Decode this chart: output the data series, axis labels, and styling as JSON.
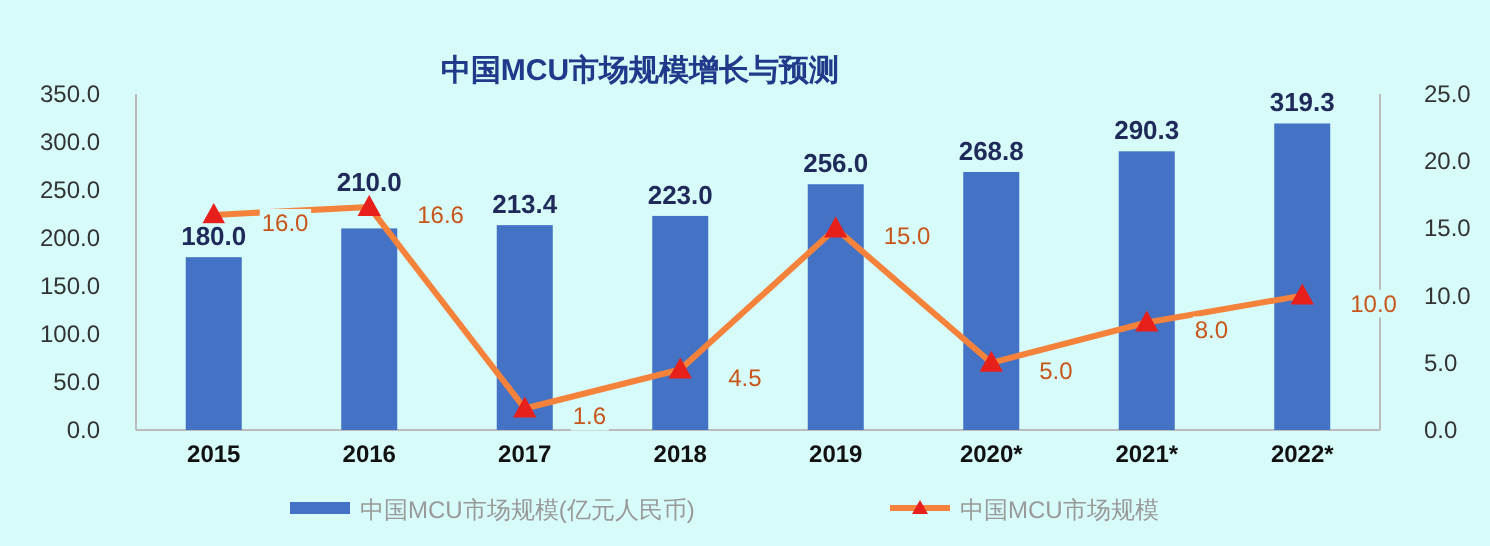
{
  "chart_data": {
    "type": "bar",
    "title": "中国MCU市场规模增长与预测",
    "categories": [
      "2015",
      "2016",
      "2017",
      "2018",
      "2019",
      "2020*",
      "2021*",
      "2022*"
    ],
    "series": [
      {
        "name": "中国MCU市场规模(亿元人民币)",
        "color": "#4472c4",
        "values": [
          180.0,
          210.0,
          213.4,
          223.0,
          256.0,
          268.8,
          290.3,
          319.3
        ],
        "value_labels": [
          "180.0",
          "210.0",
          "213.4",
          "223.0",
          "256.0",
          "268.8",
          "290.3",
          "319.3"
        ]
      },
      {
        "name": "中国MCU市场规模",
        "type": "line",
        "axis": "y2",
        "color": "#f5823a",
        "marker": "triangle",
        "values": [
          16.0,
          16.6,
          1.6,
          4.5,
          15.0,
          5.0,
          8.0,
          10.0
        ],
        "value_labels": [
          "16.0",
          "16.6",
          "1.6",
          "4.5",
          "15.0",
          "5.0",
          "8.0",
          "10.0"
        ]
      }
    ],
    "ylim": [
      0,
      350
    ],
    "yticks": [
      "0.0",
      "50.0",
      "100.0",
      "150.0",
      "200.0",
      "250.0",
      "300.0",
      "350.0"
    ],
    "y2lim": [
      0,
      25
    ],
    "y2ticks": [
      "0.0",
      "5.0",
      "10.0",
      "15.0",
      "20.0",
      "25.0"
    ],
    "grid": false,
    "legend": "bottom"
  }
}
